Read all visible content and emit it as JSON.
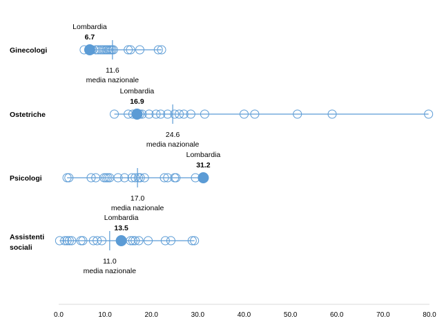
{
  "chart_data": {
    "type": "scatter",
    "title": "",
    "xlabel": "",
    "ylabel": "",
    "xlim": [
      0,
      80
    ],
    "x_ticks": [
      "0.0",
      "10.0",
      "20.0",
      "30.0",
      "40.0",
      "50.0",
      "60.0",
      "70.0",
      "80.0"
    ],
    "x_tick_values": [
      0,
      10,
      20,
      30,
      40,
      50,
      60,
      70,
      80
    ],
    "grid": false,
    "colors": {
      "marker": "#5b9bd5",
      "highlight": "#5b9bd5",
      "line": "#5b9bd5",
      "axis": "#d9d9d9"
    },
    "series": [
      {
        "name": "Ginecologi",
        "label_lines": [
          "Ginecologi"
        ],
        "values": [
          5.5,
          6.5,
          7.2,
          8.0,
          8.5,
          9.0,
          9.4,
          9.8,
          10.2,
          10.5,
          10.9,
          11.2,
          11.5,
          11.8,
          15.0,
          15.5,
          17.5,
          21.5,
          22.2
        ],
        "highlight": {
          "name": "Lombardia",
          "value": 6.7,
          "label": "Lombardia",
          "value_label": "6.7"
        },
        "mean": {
          "value": 11.6,
          "value_label": "11.6",
          "label": "media nazionale"
        }
      },
      {
        "name": "Ostetriche",
        "label_lines": [
          "Ostetriche"
        ],
        "values": [
          12.0,
          15.0,
          16.0,
          16.8,
          17.5,
          18.0,
          19.5,
          21.0,
          22.0,
          23.5,
          25.0,
          26.0,
          27.0,
          28.5,
          31.5,
          40.0,
          42.3,
          51.5,
          59.0,
          79.8
        ],
        "highlight": {
          "name": "Lombardia",
          "value": 16.9,
          "label": "Lombardia",
          "value_label": "16.9"
        },
        "mean": {
          "value": 24.6,
          "value_label": "24.6",
          "media_label": "media nazionale",
          "label": "media nazionale"
        }
      },
      {
        "name": "Psicologi",
        "label_lines": [
          "Psicologi"
        ],
        "values": [
          1.8,
          2.2,
          7.0,
          8.0,
          9.8,
          10.2,
          10.6,
          11.0,
          12.8,
          14.2,
          15.8,
          16.5,
          17.2,
          17.6,
          18.5,
          22.8,
          23.5,
          25.0,
          25.3,
          29.5
        ],
        "highlight": {
          "name": "Lombardia",
          "value": 31.2,
          "label": "Lombardia",
          "value_label": "31.2"
        },
        "mean": {
          "value": 17.0,
          "value_label": "17.0",
          "label": "media nazionale"
        }
      },
      {
        "name": "Assistenti sociali",
        "label_lines": [
          "Assistenti",
          "sociali"
        ],
        "values": [
          0.2,
          1.3,
          1.8,
          2.3,
          2.8,
          4.8,
          5.2,
          7.5,
          8.3,
          9.3,
          15.5,
          16.0,
          16.5,
          17.3,
          19.3,
          23.0,
          24.2,
          28.8,
          29.3
        ],
        "highlight": {
          "name": "Lombardia",
          "value": 13.5,
          "label": "Lombardia",
          "value_label": "13.5"
        },
        "mean": {
          "value": 11.0,
          "value_label": "11.0",
          "label": "media nazionale"
        }
      }
    ]
  }
}
